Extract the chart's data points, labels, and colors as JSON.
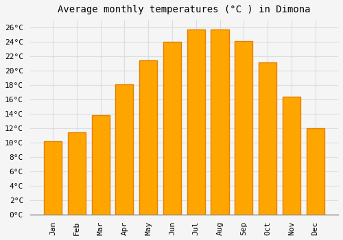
{
  "title": "Average monthly temperatures (°C ) in Dimona",
  "months": [
    "Jan",
    "Feb",
    "Mar",
    "Apr",
    "May",
    "Jun",
    "Jul",
    "Aug",
    "Sep",
    "Oct",
    "Nov",
    "Dec"
  ],
  "temperatures": [
    10.2,
    11.4,
    13.8,
    18.1,
    21.4,
    24.0,
    25.7,
    25.7,
    24.1,
    21.1,
    16.4,
    12.0
  ],
  "bar_color": "#FFA500",
  "bar_edge_color": "#E08000",
  "background_color": "#F5F5F5",
  "plot_bg_color": "#F5F5F5",
  "grid_color": "#DDDDDD",
  "ytick_step": 2,
  "ymax": 27,
  "ymin": 0,
  "title_fontsize": 10,
  "tick_fontsize": 8,
  "tick_font_family": "monospace",
  "bar_width": 0.75
}
